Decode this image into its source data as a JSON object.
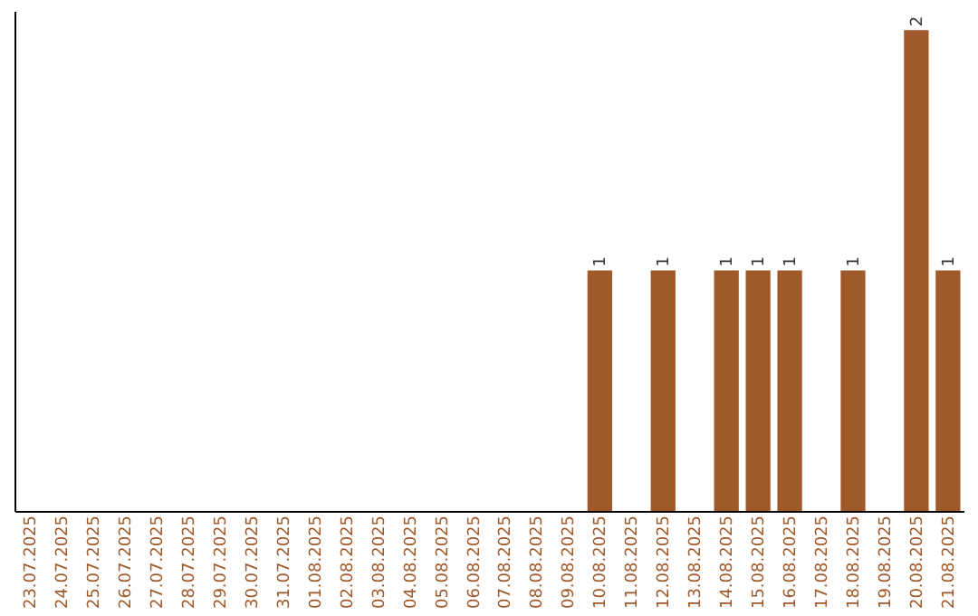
{
  "chart_data": {
    "type": "bar",
    "categories": [
      "23.07.2025",
      "24.07.2025",
      "25.07.2025",
      "26.07.2025",
      "27.07.2025",
      "28.07.2025",
      "29.07.2025",
      "30.07.2025",
      "31.07.2025",
      "01.08.2025",
      "02.08.2025",
      "03.08.2025",
      "04.08.2025",
      "05.08.2025",
      "06.08.2025",
      "07.08.2025",
      "08.08.2025",
      "09.08.2025",
      "10.08.2025",
      "11.08.2025",
      "12.08.2025",
      "13.08.2025",
      "14.08.2025",
      "15.08.2025",
      "16.08.2025",
      "17.08.2025",
      "18.08.2025",
      "19.08.2025",
      "20.08.2025",
      "21.08.2025"
    ],
    "values": [
      null,
      null,
      null,
      null,
      null,
      null,
      null,
      null,
      null,
      null,
      null,
      null,
      null,
      null,
      null,
      null,
      null,
      null,
      1,
      null,
      1,
      null,
      1,
      1,
      1,
      null,
      1,
      null,
      2,
      1
    ],
    "data_labels": true,
    "color": "#a0592a",
    "tick_labels": "x",
    "grid": false
  }
}
